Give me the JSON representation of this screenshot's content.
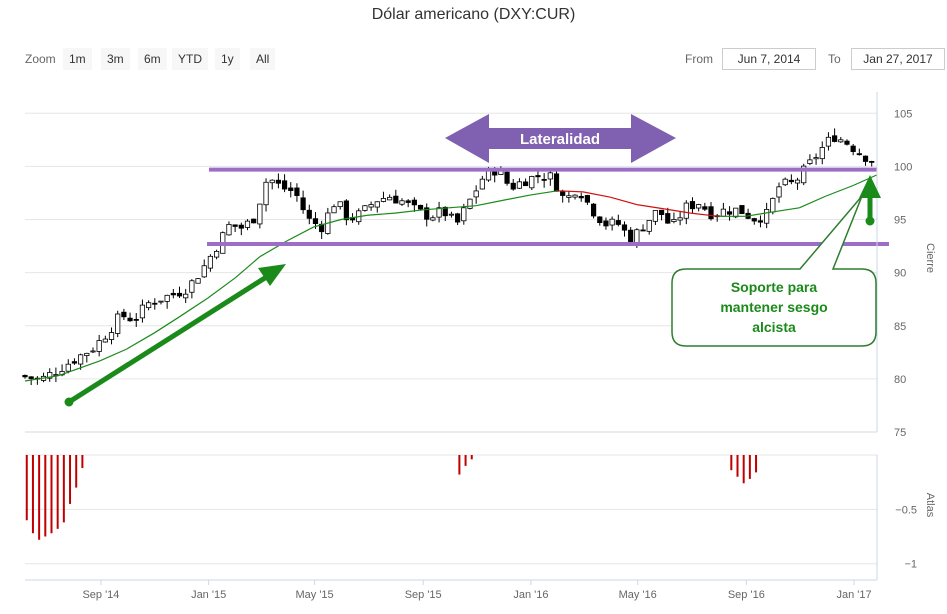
{
  "chart_data": {
    "type": "candlestick",
    "title": "Dólar americano (DXY:CUR)",
    "zoom": {
      "label": "Zoom",
      "buttons": [
        "1m",
        "3m",
        "6m",
        "YTD",
        "1y",
        "All"
      ]
    },
    "range": {
      "from_label": "From",
      "from_value": "Jun 7, 2014",
      "to_label": "To",
      "to_value": "Jan 27, 2017"
    },
    "x_ticks": [
      "Sep '14",
      "Jan '15",
      "May '15",
      "Sep '15",
      "Jan '16",
      "May '16",
      "Sep '16",
      "Jan '17"
    ],
    "price_panel": {
      "ylabel": "Cierre",
      "y_ticks": [
        75,
        80,
        85,
        90,
        95,
        100,
        105
      ],
      "ylim": [
        75,
        107
      ],
      "close_path": [
        [
          "2014-06-07",
          80.3
        ],
        [
          "2014-06-20",
          80.1
        ],
        [
          "2014-07-01",
          79.9
        ],
        [
          "2014-07-15",
          80.6
        ],
        [
          "2014-07-31",
          81.4
        ],
        [
          "2014-08-15",
          82.2
        ],
        [
          "2014-08-31",
          83.0
        ],
        [
          "2014-09-15",
          84.4
        ],
        [
          "2014-09-30",
          86.0
        ],
        [
          "2014-10-15",
          85.6
        ],
        [
          "2014-10-31",
          87.1
        ],
        [
          "2014-11-15",
          87.6
        ],
        [
          "2014-11-30",
          88.0
        ],
        [
          "2014-12-15",
          88.6
        ],
        [
          "2014-12-31",
          90.3
        ],
        [
          "2015-01-15",
          92.3
        ],
        [
          "2015-01-31",
          94.5
        ],
        [
          "2015-02-15",
          94.2
        ],
        [
          "2015-02-28",
          95.2
        ],
        [
          "2015-03-15",
          99.0
        ],
        [
          "2015-03-31",
          98.0
        ],
        [
          "2015-04-15",
          97.6
        ],
        [
          "2015-04-30",
          95.0
        ],
        [
          "2015-05-15",
          94.3
        ],
        [
          "2015-05-31",
          96.8
        ],
        [
          "2015-06-15",
          95.0
        ],
        [
          "2015-06-30",
          95.6
        ],
        [
          "2015-07-15",
          96.8
        ],
        [
          "2015-07-31",
          97.2
        ],
        [
          "2015-08-15",
          96.7
        ],
        [
          "2015-08-31",
          95.8
        ],
        [
          "2015-09-15",
          95.3
        ],
        [
          "2015-09-30",
          95.8
        ],
        [
          "2015-10-15",
          94.5
        ],
        [
          "2015-10-31",
          96.9
        ],
        [
          "2015-11-15",
          99.1
        ],
        [
          "2015-11-30",
          99.8
        ],
        [
          "2015-12-15",
          98.0
        ],
        [
          "2015-12-31",
          98.7
        ],
        [
          "2016-01-15",
          99.1
        ],
        [
          "2016-01-31",
          99.0
        ],
        [
          "2016-02-15",
          96.7
        ],
        [
          "2016-02-29",
          98.1
        ],
        [
          "2016-03-15",
          96.1
        ],
        [
          "2016-03-31",
          94.6
        ],
        [
          "2016-04-15",
          94.6
        ],
        [
          "2016-04-30",
          93.1
        ],
        [
          "2016-05-15",
          94.6
        ],
        [
          "2016-05-31",
          95.9
        ],
        [
          "2016-06-15",
          94.2
        ],
        [
          "2016-06-30",
          96.1
        ],
        [
          "2016-07-15",
          96.6
        ],
        [
          "2016-07-31",
          95.5
        ],
        [
          "2016-08-15",
          95.9
        ],
        [
          "2016-08-31",
          95.9
        ],
        [
          "2016-09-15",
          95.1
        ],
        [
          "2016-09-30",
          95.4
        ],
        [
          "2016-10-15",
          98.2
        ],
        [
          "2016-10-31",
          98.4
        ],
        [
          "2016-11-15",
          99.9
        ],
        [
          "2016-11-30",
          101.5
        ],
        [
          "2016-12-15",
          102.9
        ],
        [
          "2016-12-31",
          102.2
        ],
        [
          "2017-01-15",
          101.2
        ],
        [
          "2017-01-27",
          100.6
        ]
      ],
      "moving_average": [
        [
          "2014-06-07",
          79.8
        ],
        [
          "2014-07-15",
          80.3
        ],
        [
          "2014-08-31",
          81.7
        ],
        [
          "2014-09-30",
          82.8
        ],
        [
          "2014-10-31",
          84.3
        ],
        [
          "2014-11-30",
          85.9
        ],
        [
          "2014-12-31",
          87.6
        ],
        [
          "2015-01-31",
          89.5
        ],
        [
          "2015-02-28",
          91.5
        ],
        [
          "2015-03-31",
          93.0
        ],
        [
          "2015-04-30",
          94.3
        ],
        [
          "2015-05-31",
          95.0
        ],
        [
          "2015-06-30",
          95.4
        ],
        [
          "2015-07-31",
          95.6
        ],
        [
          "2015-08-31",
          95.9
        ],
        [
          "2015-09-30",
          96.1
        ],
        [
          "2015-10-31",
          96.3
        ],
        [
          "2015-11-30",
          96.8
        ],
        [
          "2015-12-31",
          97.3
        ],
        [
          "2016-01-31",
          97.7
        ],
        [
          "2016-02-29",
          97.6
        ],
        [
          "2016-03-31",
          97.1
        ],
        [
          "2016-04-30",
          96.4
        ],
        [
          "2016-05-31",
          96.0
        ],
        [
          "2016-06-30",
          95.6
        ],
        [
          "2016-07-31",
          95.3
        ],
        [
          "2016-08-31",
          95.3
        ],
        [
          "2016-09-30",
          95.7
        ],
        [
          "2016-10-31",
          96.1
        ],
        [
          "2016-11-30",
          97.2
        ],
        [
          "2016-12-31",
          98.2
        ],
        [
          "2017-01-27",
          99.2
        ]
      ],
      "ma_colors": {
        "rising": "#1a8a1a",
        "falling": "#d01010"
      },
      "horizontal_lines": [
        99.7,
        92.7
      ],
      "line_color": "#9b6fc7"
    },
    "atlas_panel": {
      "ylabel": "Atlas",
      "y_ticks": [
        -0.5,
        -1
      ],
      "ylim": [
        -1.15,
        0
      ],
      "bar_color": "#c00000",
      "bars": [
        [
          "2014-06-09",
          -0.6
        ],
        [
          "2014-06-16",
          -0.72
        ],
        [
          "2014-06-23",
          -0.78
        ],
        [
          "2014-06-30",
          -0.75
        ],
        [
          "2014-07-07",
          -0.72
        ],
        [
          "2014-07-14",
          -0.68
        ],
        [
          "2014-07-21",
          -0.62
        ],
        [
          "2014-07-28",
          -0.45
        ],
        [
          "2014-08-04",
          -0.3
        ],
        [
          "2014-08-11",
          -0.12
        ],
        [
          "2015-10-12",
          -0.18
        ],
        [
          "2015-10-19",
          -0.1
        ],
        [
          "2015-10-26",
          -0.04
        ],
        [
          "2016-08-15",
          -0.14
        ],
        [
          "2016-08-22",
          -0.2
        ],
        [
          "2016-08-29",
          -0.26
        ],
        [
          "2016-09-05",
          -0.22
        ],
        [
          "2016-09-12",
          -0.16
        ]
      ]
    },
    "annotations": {
      "lateralidad": "Lateralidad",
      "support": [
        "Soporte para",
        "mantener sesgo",
        "alcista"
      ],
      "arrow_color": "#1a8a1a",
      "box_color": "#8060b0"
    }
  }
}
